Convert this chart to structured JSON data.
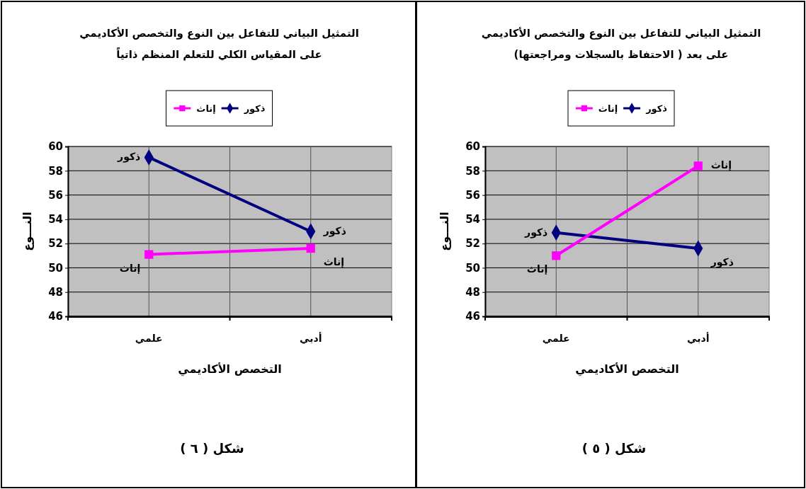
{
  "chart_data": [
    {
      "type": "line",
      "title": "التمثيل البياني للتفاعل بين النوع والتخصص الأكاديمي",
      "subtitle": "على المقياس الكلي للتعلم المنظم ذاتياً",
      "xlabel": "التخصص الأكاديمي",
      "ylabel": "النـــوع",
      "categories": [
        "علمي",
        "أدبي"
      ],
      "series": [
        {
          "name": "ذكور",
          "color": "#000080",
          "marker": "diamond",
          "values": [
            59.1,
            53.0
          ]
        },
        {
          "name": "إناث",
          "color": "#ff00ff",
          "marker": "square",
          "values": [
            51.1,
            51.6
          ]
        }
      ],
      "ylim": [
        46,
        60
      ],
      "yticks": [
        46,
        48,
        50,
        52,
        54,
        56,
        58,
        60
      ],
      "grid": true,
      "legend": "top",
      "annotations": [
        "شكل ( ٦ )"
      ]
    },
    {
      "type": "line",
      "title": "التمثيل البياني للتفاعل بين النوع والتخصص الأكاديمي",
      "subtitle": "على بعد ( الاحتفاظ بالسجلات ومراجعتها)",
      "xlabel": "التخصص الأكاديمي",
      "ylabel": "النـــوع",
      "categories": [
        "علمي",
        "أدبي"
      ],
      "series": [
        {
          "name": "ذكور",
          "color": "#000080",
          "marker": "diamond",
          "values": [
            52.9,
            51.6
          ]
        },
        {
          "name": "إناث",
          "color": "#ff00ff",
          "marker": "square",
          "values": [
            51.0,
            58.4
          ]
        }
      ],
      "ylim": [
        46,
        60
      ],
      "yticks": [
        46,
        48,
        50,
        52,
        54,
        56,
        58,
        60
      ],
      "grid": true,
      "legend": "top",
      "annotations": [
        "شكل ( ٥ )"
      ]
    }
  ]
}
